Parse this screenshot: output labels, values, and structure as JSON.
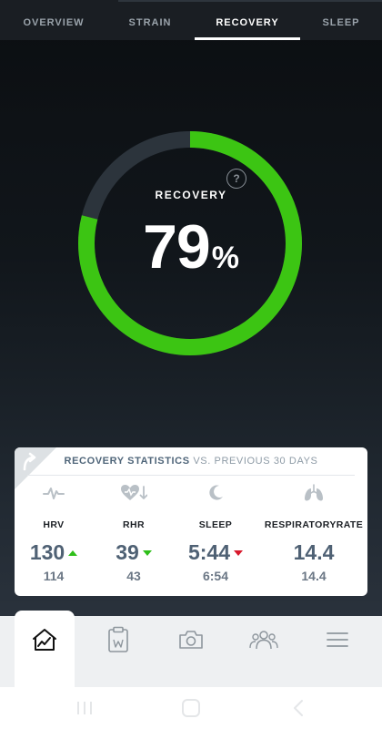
{
  "tabs": [
    {
      "label": "OVERVIEW"
    },
    {
      "label": "STRAIN"
    },
    {
      "label": "RECOVERY",
      "active": true
    },
    {
      "label": "SLEEP"
    }
  ],
  "recovery": {
    "label": "RECOVERY",
    "value": "79",
    "unit": "%",
    "fraction": 0.79,
    "ring_color": "#3cc513",
    "track_color": "#2c343c",
    "help_symbol": "?"
  },
  "stats_card": {
    "title_bold": "RECOVERY STATISTICS",
    "title_light": "VS. PREVIOUS 30 DAYS",
    "corner_icon": "curved-arrow-icon",
    "stats": [
      {
        "label": "HRV",
        "icon": "pulse-icon",
        "value": "130",
        "trend": "up",
        "trend_color": "#2fbf1a",
        "previous": "114"
      },
      {
        "label": "RHR",
        "icon": "heart-down-icon",
        "value": "39",
        "trend": "down",
        "trend_color": "#2fbf1a",
        "previous": "43"
      },
      {
        "label": "SLEEP",
        "icon": "moon-icon",
        "value": "5:44",
        "trend": "down",
        "trend_color": "#d8192c",
        "previous": "6:54"
      },
      {
        "label": "RESPIRATORY RATE",
        "label_line1": "RESPIRATORY",
        "label_line2": "RATE",
        "icon": "lungs-icon",
        "value": "14.4",
        "trend": "none",
        "previous": "14.4"
      }
    ]
  },
  "bottom_nav": {
    "items": [
      "home-chart-icon",
      "clipboard-icon",
      "camera-icon",
      "team-icon",
      "menu-icon"
    ],
    "active": "home-chart-icon"
  },
  "system_nav": [
    "recents-icon",
    "home-icon",
    "back-icon"
  ]
}
